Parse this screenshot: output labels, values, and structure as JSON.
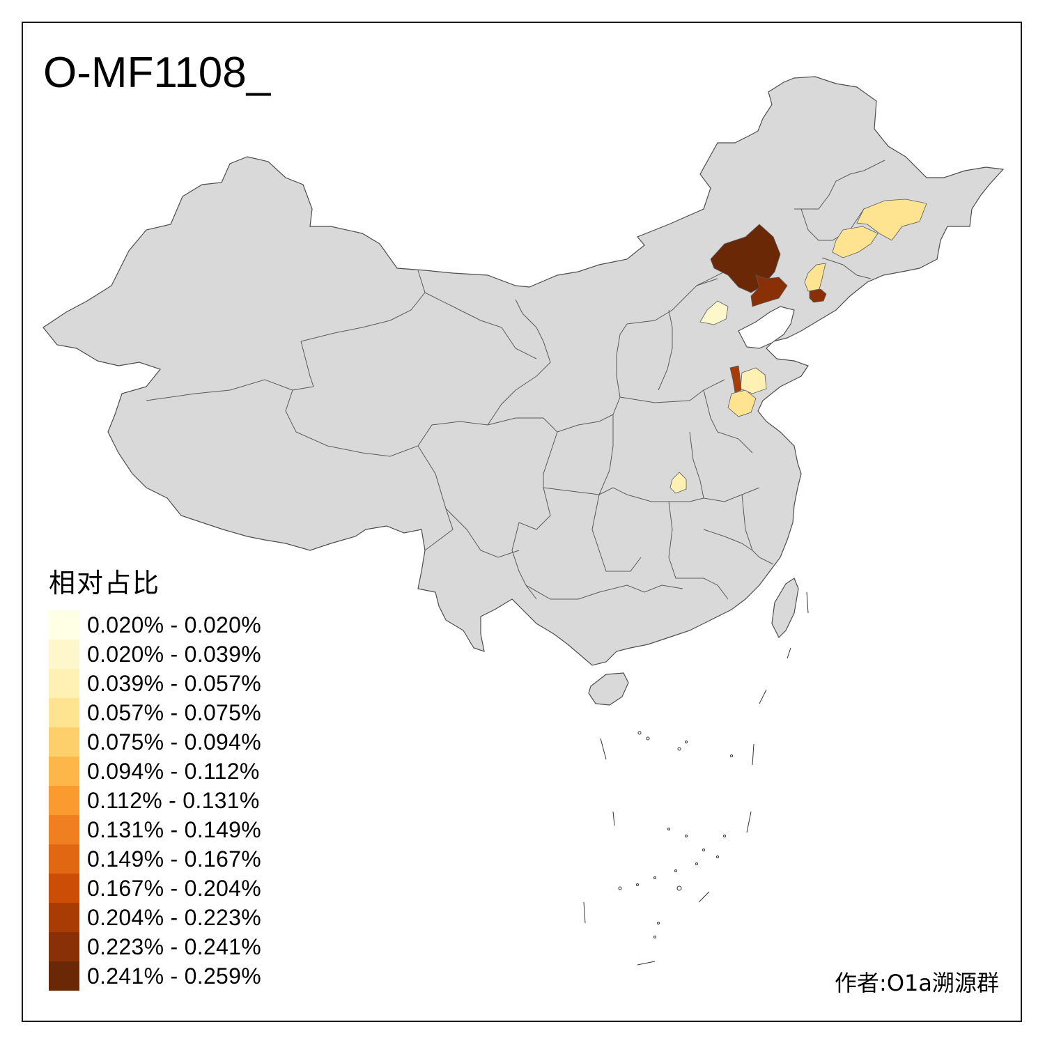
{
  "title": "O-MF1108_",
  "author": "作者:O1a溯源群",
  "colors": {
    "base_fill": "#d9d9d9",
    "border": "#555555",
    "frame": "#1a1a1a"
  },
  "legend": {
    "title": "相对占比",
    "items": [
      {
        "label": "0.020% - 0.020%",
        "color": "#ffffe5"
      },
      {
        "label": "0.020% - 0.039%",
        "color": "#fff7cc"
      },
      {
        "label": "0.039% - 0.057%",
        "color": "#fff0b3"
      },
      {
        "label": "0.057% - 0.075%",
        "color": "#fee391"
      },
      {
        "label": "0.075% - 0.094%",
        "color": "#fed06c"
      },
      {
        "label": "0.094% - 0.112%",
        "color": "#fdb648"
      },
      {
        "label": "0.112% - 0.131%",
        "color": "#fb9a2f"
      },
      {
        "label": "0.131% - 0.149%",
        "color": "#f0801f"
      },
      {
        "label": "0.149% - 0.167%",
        "color": "#e26712"
      },
      {
        "label": "0.167% - 0.204%",
        "color": "#cc4e06"
      },
      {
        "label": "0.204% - 0.223%",
        "color": "#a93c05"
      },
      {
        "label": "0.223% - 0.241%",
        "color": "#893006"
      },
      {
        "label": "0.241% - 0.259%",
        "color": "#6b2807"
      }
    ]
  }
}
